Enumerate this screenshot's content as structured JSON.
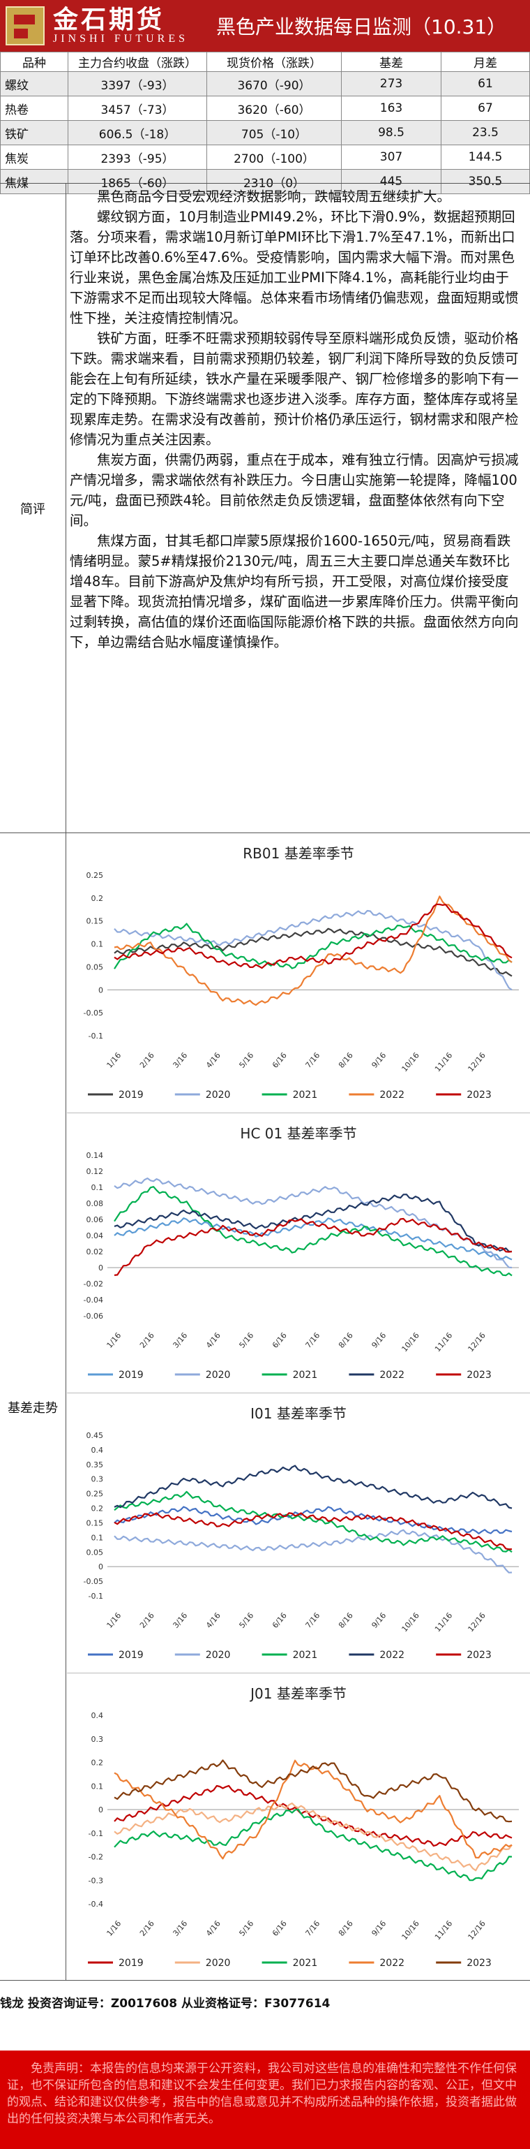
{
  "header": {
    "logo_cn": "金石期货",
    "logo_en": "JINSHI FUTURES",
    "title": "黑色产业数据每日监测（10.31）"
  },
  "prices": {
    "columns": [
      "品种",
      "主力合约收盘（涨跌）",
      "现货价格（涨跌）",
      "基差",
      "月差"
    ],
    "rows": [
      [
        "螺纹",
        "3397（-93）",
        "3670（-90）",
        "273",
        "61"
      ],
      [
        "热卷",
        "3457（-73）",
        "3620（-60）",
        "163",
        "67"
      ],
      [
        "铁矿",
        "606.5（-18）",
        "705（-10）",
        "98.5",
        "23.5"
      ],
      [
        "焦炭",
        "2393（-95）",
        "2700（-100）",
        "307",
        "144.5"
      ],
      [
        "焦煤",
        "1865（-60）",
        "2310（0）",
        "445",
        "350.5"
      ]
    ]
  },
  "commentary": {
    "label": "简评",
    "paragraphs": [
      "黑色商品今日受宏观经济数据影响，跌幅较周五继续扩大。",
      "螺纹钢方面，10月制造业PMI49.2%，环比下滑0.9%，数据超预期回落。分项来看，需求端10月新订单PMI环比下滑1.7%至47.1%，而新出口订单环比改善0.6%至47.6%。受疫情影响，国内需求大幅下滑。而对黑色行业来说，黑色金属冶炼及压延加工业PMI下降4.1%，高耗能行业均由于下游需求不足而出现较大降幅。总体来看市场情绪仍偏悲观，盘面短期或惯性下挫，关注疫情控制情况。",
      "铁矿方面，旺季不旺需求预期较弱传导至原料端形成负反馈，驱动价格下跌。需求端来看，目前需求预期仍较差，钢厂利润下降所导致的负反馈可能会在上旬有所延续，铁水产量在采暖季限产、钢厂检修增多的影响下有一定的下降预期。下游终端需求也逐步进入淡季。库存方面，整体库存或将呈现累库走势。在需求没有改善前，预计价格仍承压运行，钢材需求和限产检修情况为重点关注因素。",
      "焦炭方面，供需仍两弱，重点在于成本，难有独立行情。因高炉亏损减产情况增多，需求端依然有补跌压力。今日唐山实施第一轮提降，降幅100元/吨，盘面已预跌4轮。目前依然走负反馈逻辑，盘面整体依然有向下空间。",
      "焦煤方面，甘其毛都口岸蒙5原煤报价1600-1650元/吨，贸易商看跌情绪明显。蒙5#精煤报价2130元/吨，周五三大主要口岸总通关车数环比增48车。目前下游高炉及焦炉均有所亏损，开工受限，对高位煤价接受度显著下降。现货流拍情况增多，煤矿面临进一步累库降价压力。供需平衡向过剩转换，高估值的煤价还面临国际能源价格下跌的共振。盘面依然方向向下，单边需结合贴水幅度谨慎操作。"
    ]
  },
  "basis_section": {
    "label": "基差走势"
  },
  "chart_data": [
    {
      "type": "line",
      "title": "RB01 基差率季节",
      "x_ticks": [
        "1/16",
        "2/16",
        "3/16",
        "4/16",
        "5/16",
        "6/16",
        "7/16",
        "8/16",
        "9/16",
        "10/16",
        "11/16",
        "12/16"
      ],
      "y_ticks": [
        0.25,
        0.2,
        0.15,
        0.1,
        0.05,
        0,
        -0.05,
        -0.1
      ],
      "ylim": [
        -0.1,
        0.25
      ],
      "series": [
        {
          "name": "2019",
          "color": "#404040",
          "values": [
            0.08,
            0.09,
            0.1,
            0.09,
            0.11,
            0.12,
            0.13,
            0.12,
            0.1,
            0.09,
            0.06,
            0.03
          ]
        },
        {
          "name": "2020",
          "color": "#8ea9db",
          "values": [
            0.13,
            0.12,
            0.11,
            0.1,
            0.12,
            0.14,
            0.16,
            0.17,
            0.15,
            0.13,
            0.1,
            0.0
          ]
        },
        {
          "name": "2021",
          "color": "#00b050",
          "values": [
            0.05,
            0.12,
            0.14,
            0.08,
            0.06,
            0.05,
            0.1,
            0.12,
            0.14,
            0.11,
            0.07,
            0.06
          ]
        },
        {
          "name": "2022",
          "color": "#ed7d31",
          "values": [
            0.09,
            0.1,
            0.04,
            -0.02,
            -0.03,
            0.0,
            0.08,
            0.05,
            0.04,
            0.2,
            0.13,
            0.06
          ]
        },
        {
          "name": "2023",
          "color": "#c00000",
          "values": [
            0.07,
            0.08,
            0.09,
            0.06,
            0.05,
            0.07,
            0.06,
            0.1,
            0.12,
            0.19,
            0.14,
            0.07
          ]
        }
      ]
    },
    {
      "type": "line",
      "title": "HC 01 基差率季节",
      "x_ticks": [
        "1/16",
        "2/16",
        "3/16",
        "4/16",
        "5/16",
        "6/16",
        "7/16",
        "8/16",
        "9/16",
        "10/16",
        "11/16",
        "12/16"
      ],
      "y_ticks": [
        0.14,
        0.12,
        0.1,
        0.08,
        0.06,
        0.04,
        0.02,
        0,
        -0.02,
        -0.04,
        -0.06
      ],
      "ylim": [
        -0.06,
        0.14
      ],
      "series": [
        {
          "name": "2019",
          "color": "#5b9bd5",
          "values": [
            0.04,
            0.05,
            0.06,
            0.05,
            0.04,
            0.05,
            0.06,
            0.05,
            0.04,
            0.03,
            0.02,
            0.01
          ]
        },
        {
          "name": "2020",
          "color": "#8ea9db",
          "values": [
            0.1,
            0.11,
            0.1,
            0.09,
            0.08,
            0.09,
            0.1,
            0.08,
            0.07,
            0.05,
            0.03,
            0.0
          ]
        },
        {
          "name": "2021",
          "color": "#00b050",
          "values": [
            0.06,
            0.1,
            0.08,
            0.04,
            0.03,
            0.02,
            0.04,
            0.05,
            0.03,
            0.02,
            0.0,
            -0.01
          ]
        },
        {
          "name": "2022",
          "color": "#203864",
          "values": [
            0.05,
            0.06,
            0.07,
            0.06,
            0.05,
            0.06,
            0.07,
            0.08,
            0.09,
            0.08,
            0.03,
            0.02
          ]
        },
        {
          "name": "2023",
          "color": "#c00000",
          "values": [
            -0.01,
            0.03,
            0.04,
            0.05,
            0.04,
            0.06,
            0.05,
            0.04,
            0.06,
            0.05,
            0.03,
            0.02
          ]
        }
      ]
    },
    {
      "type": "line",
      "title": "I01 基差率季节",
      "x_ticks": [
        "1/16",
        "2/16",
        "3/16",
        "4/16",
        "5/16",
        "6/16",
        "7/16",
        "8/16",
        "9/16",
        "10/16",
        "11/16",
        "12/16"
      ],
      "y_ticks": [
        0.45,
        0.4,
        0.35,
        0.3,
        0.25,
        0.2,
        0.15,
        0.1,
        0.05,
        0,
        -0.05,
        -0.1
      ],
      "ylim": [
        -0.1,
        0.45
      ],
      "series": [
        {
          "name": "2019",
          "color": "#4472c4",
          "values": [
            0.15,
            0.18,
            0.2,
            0.17,
            0.15,
            0.18,
            0.2,
            0.17,
            0.15,
            0.13,
            0.12,
            0.12
          ]
        },
        {
          "name": "2020",
          "color": "#8ea9db",
          "values": [
            0.1,
            0.09,
            0.08,
            0.07,
            0.06,
            0.07,
            0.08,
            0.1,
            0.12,
            0.1,
            0.05,
            -0.02
          ]
        },
        {
          "name": "2021",
          "color": "#00b050",
          "values": [
            0.2,
            0.22,
            0.25,
            0.2,
            0.18,
            0.17,
            0.15,
            0.1,
            0.08,
            0.1,
            0.08,
            0.05
          ]
        },
        {
          "name": "2022",
          "color": "#203864",
          "values": [
            0.2,
            0.25,
            0.3,
            0.28,
            0.32,
            0.34,
            0.3,
            0.28,
            0.25,
            0.22,
            0.25,
            0.2
          ]
        },
        {
          "name": "2023",
          "color": "#c00000",
          "values": [
            0.15,
            0.18,
            0.16,
            0.14,
            0.17,
            0.18,
            0.16,
            0.17,
            0.16,
            0.13,
            0.1,
            0.06
          ]
        }
      ]
    },
    {
      "type": "line",
      "title": "J01 基差率季节",
      "x_ticks": [
        "1/16",
        "2/16",
        "3/16",
        "4/16",
        "5/16",
        "6/16",
        "7/16",
        "8/16",
        "9/16",
        "10/16",
        "11/16",
        "12/16"
      ],
      "y_ticks": [
        0.4,
        0.3,
        0.2,
        0.1,
        0,
        -0.1,
        -0.2,
        -0.3,
        -0.4
      ],
      "ylim": [
        -0.4,
        0.4
      ],
      "series": [
        {
          "name": "2019",
          "color": "#c00000",
          "values": [
            -0.05,
            0.0,
            0.05,
            0.1,
            0.05,
            0.0,
            -0.05,
            -0.1,
            -0.12,
            -0.15,
            -0.1,
            -0.12
          ]
        },
        {
          "name": "2020",
          "color": "#f4b183",
          "values": [
            -0.1,
            -0.05,
            0.0,
            -0.05,
            0.0,
            0.02,
            -0.05,
            -0.1,
            -0.15,
            -0.2,
            -0.25,
            -0.15
          ]
        },
        {
          "name": "2021",
          "color": "#00b050",
          "values": [
            -0.15,
            -0.1,
            -0.12,
            -0.15,
            -0.05,
            0.0,
            -0.1,
            -0.15,
            -0.2,
            -0.25,
            -0.3,
            -0.2
          ]
        },
        {
          "name": "2022",
          "color": "#ed7d31",
          "values": [
            0.15,
            0.05,
            -0.05,
            -0.2,
            -0.1,
            0.2,
            0.15,
            0.0,
            -0.05,
            0.05,
            -0.2,
            -0.15
          ]
        },
        {
          "name": "2023",
          "color": "#843c0c",
          "values": [
            0.05,
            0.1,
            0.15,
            0.2,
            0.1,
            0.15,
            0.2,
            0.05,
            0.1,
            0.15,
            0.0,
            -0.05
          ]
        }
      ]
    }
  ],
  "footer": {
    "analyst": "钱龙 投资咨询证号：Z0017608 从业资格证号：F3077614",
    "disclaimer": "免责声明：本报告的信息均来源于公开资料，我公司对这些信息的准确性和完整性不作任何保证，也不保证所包含的信息和建议不会发生任何变更。我们已力求报告内容的客观、公正，但文中的观点、结论和建议仅供参考，报告中的信息或意见并不构成所述品种的操作依据，投资者据此做出的任何投资决策与本公司和作者无关。"
  }
}
